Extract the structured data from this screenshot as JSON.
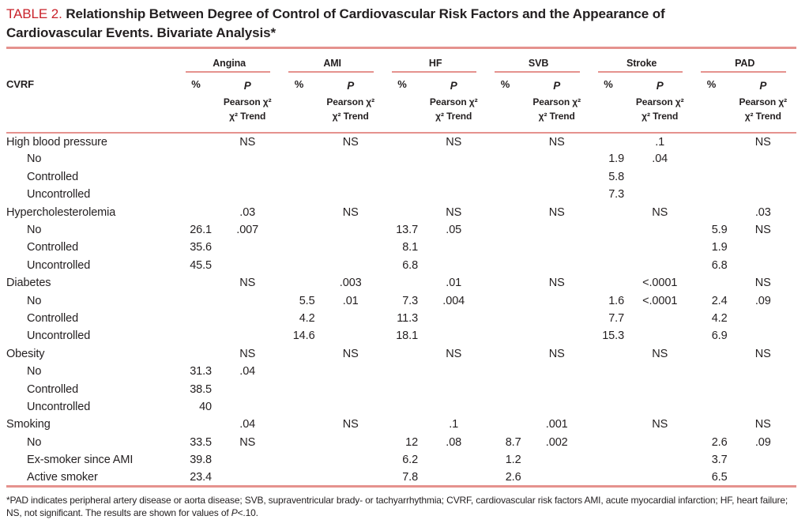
{
  "title": {
    "tag": "TABLE 2.",
    "text": "Relationship Between Degree of Control of Cardiovascular Risk Factors and the Appearance of Cardiovascular Events. Bivariate Analysis*"
  },
  "colors": {
    "accent_red": "#c9222a",
    "rule_pink": "#e5928e",
    "text": "#231f20"
  },
  "header": {
    "cvrf": "CVRF",
    "groups": [
      "Angina",
      "AMI",
      "HF",
      "SVB",
      "Stroke",
      "PAD"
    ],
    "pct": "%",
    "p": "P",
    "p_line2": "Pearson χ²",
    "p_line3": "χ² Trend"
  },
  "rows": [
    {
      "label": "High blood pressure",
      "indent": false,
      "cells": [
        "",
        "NS",
        "",
        "NS",
        "",
        "NS",
        "",
        "NS",
        "",
        ".1",
        "",
        "NS"
      ]
    },
    {
      "label": "No",
      "indent": true,
      "cells": [
        "",
        "",
        "",
        "",
        "",
        "",
        "",
        "",
        "1.9",
        ".04",
        "",
        ""
      ]
    },
    {
      "label": "Controlled",
      "indent": true,
      "cells": [
        "",
        "",
        "",
        "",
        "",
        "",
        "",
        "",
        "5.8",
        "",
        "",
        ""
      ]
    },
    {
      "label": "Uncontrolled",
      "indent": true,
      "cells": [
        "",
        "",
        "",
        "",
        "",
        "",
        "",
        "",
        "7.3",
        "",
        "",
        ""
      ]
    },
    {
      "label": "Hypercholesterolemia",
      "indent": false,
      "cells": [
        "",
        ".03",
        "",
        "NS",
        "",
        "NS",
        "",
        "NS",
        "",
        "NS",
        "",
        ".03"
      ]
    },
    {
      "label": "No",
      "indent": true,
      "cells": [
        "26.1",
        ".007",
        "",
        "",
        "13.7",
        ".05",
        "",
        "",
        "",
        "",
        "5.9",
        "NS"
      ]
    },
    {
      "label": "Controlled",
      "indent": true,
      "cells": [
        "35.6",
        "",
        "",
        "",
        "8.1",
        "",
        "",
        "",
        "",
        "",
        "1.9",
        ""
      ]
    },
    {
      "label": "Uncontrolled",
      "indent": true,
      "cells": [
        "45.5",
        "",
        "",
        "",
        "6.8",
        "",
        "",
        "",
        "",
        "",
        "6.8",
        ""
      ]
    },
    {
      "label": "Diabetes",
      "indent": false,
      "cells": [
        "",
        "NS",
        "",
        ".003",
        "",
        ".01",
        "",
        "NS",
        "",
        "<.0001",
        "",
        "NS"
      ]
    },
    {
      "label": "No",
      "indent": true,
      "cells": [
        "",
        "",
        "5.5",
        ".01",
        "7.3",
        ".004",
        "",
        "",
        "1.6",
        "<.0001",
        "2.4",
        ".09"
      ]
    },
    {
      "label": "Controlled",
      "indent": true,
      "cells": [
        "",
        "",
        "4.2",
        "",
        "11.3",
        "",
        "",
        "",
        "7.7",
        "",
        "4.2",
        ""
      ]
    },
    {
      "label": "Uncontrolled",
      "indent": true,
      "cells": [
        "",
        "",
        "14.6",
        "",
        "18.1",
        "",
        "",
        "",
        "15.3",
        "",
        "6.9",
        ""
      ]
    },
    {
      "label": "Obesity",
      "indent": false,
      "cells": [
        "",
        "NS",
        "",
        "NS",
        "",
        "NS",
        "",
        "NS",
        "",
        "NS",
        "",
        "NS"
      ]
    },
    {
      "label": "No",
      "indent": true,
      "cells": [
        "31.3",
        ".04",
        "",
        "",
        "",
        "",
        "",
        "",
        "",
        "",
        "",
        ""
      ]
    },
    {
      "label": "Controlled",
      "indent": true,
      "cells": [
        "38.5",
        "",
        "",
        "",
        "",
        "",
        "",
        "",
        "",
        "",
        "",
        ""
      ]
    },
    {
      "label": "Uncontrolled",
      "indent": true,
      "cells": [
        "40",
        "",
        "",
        "",
        "",
        "",
        "",
        "",
        "",
        "",
        "",
        ""
      ]
    },
    {
      "label": "Smoking",
      "indent": false,
      "cells": [
        "",
        ".04",
        "",
        "NS",
        "",
        ".1",
        "",
        ".001",
        "",
        "NS",
        "",
        "NS"
      ]
    },
    {
      "label": "No",
      "indent": true,
      "cells": [
        "33.5",
        "NS",
        "",
        "",
        "12",
        ".08",
        "8.7",
        ".002",
        "",
        "",
        "2.6",
        ".09"
      ]
    },
    {
      "label": "Ex-smoker since AMI",
      "indent": true,
      "cells": [
        "39.8",
        "",
        "",
        "",
        "6.2",
        "",
        "1.2",
        "",
        "",
        "",
        "3.7",
        ""
      ]
    },
    {
      "label": "Active smoker",
      "indent": true,
      "cells": [
        "23.4",
        "",
        "",
        "",
        "7.8",
        "",
        "2.6",
        "",
        "",
        "",
        "6.5",
        ""
      ]
    }
  ],
  "footnote": {
    "before": "*PAD indicates peripheral artery disease or aorta disease; SVB, supraventricular brady- or tachyarrhythmia; CVRF, cardiovascular risk factors AMI, acute myocardial infarction; HF, heart failure; NS, not significant. The results are shown for values of ",
    "italic": "P",
    "after": "<.10."
  }
}
